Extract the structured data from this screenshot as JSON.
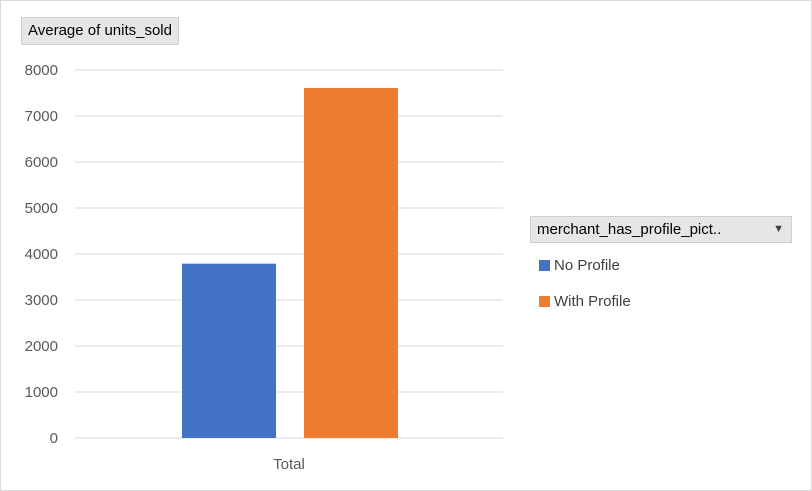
{
  "field_button": {
    "label": "Average of units_sold"
  },
  "legend": {
    "header": "merchant_has_profile_pict..",
    "dropdown_icon": "dropdown-arrow-icon"
  },
  "colors": {
    "No Profile": "#4472c4",
    "With Profile": "#ed7d31",
    "gridline": "#d9d9d9",
    "axis_text": "#595959"
  },
  "chart_data": {
    "type": "bar",
    "categories": [
      "Total"
    ],
    "series": [
      {
        "name": "No Profile",
        "values": [
          3790
        ]
      },
      {
        "name": "With Profile",
        "values": [
          7610
        ]
      }
    ],
    "ylim": [
      0,
      8000
    ],
    "yticks": [
      0,
      1000,
      2000,
      3000,
      4000,
      5000,
      6000,
      7000,
      8000
    ],
    "grid": true,
    "legend_position": "right",
    "xlabel": "",
    "ylabel": ""
  }
}
